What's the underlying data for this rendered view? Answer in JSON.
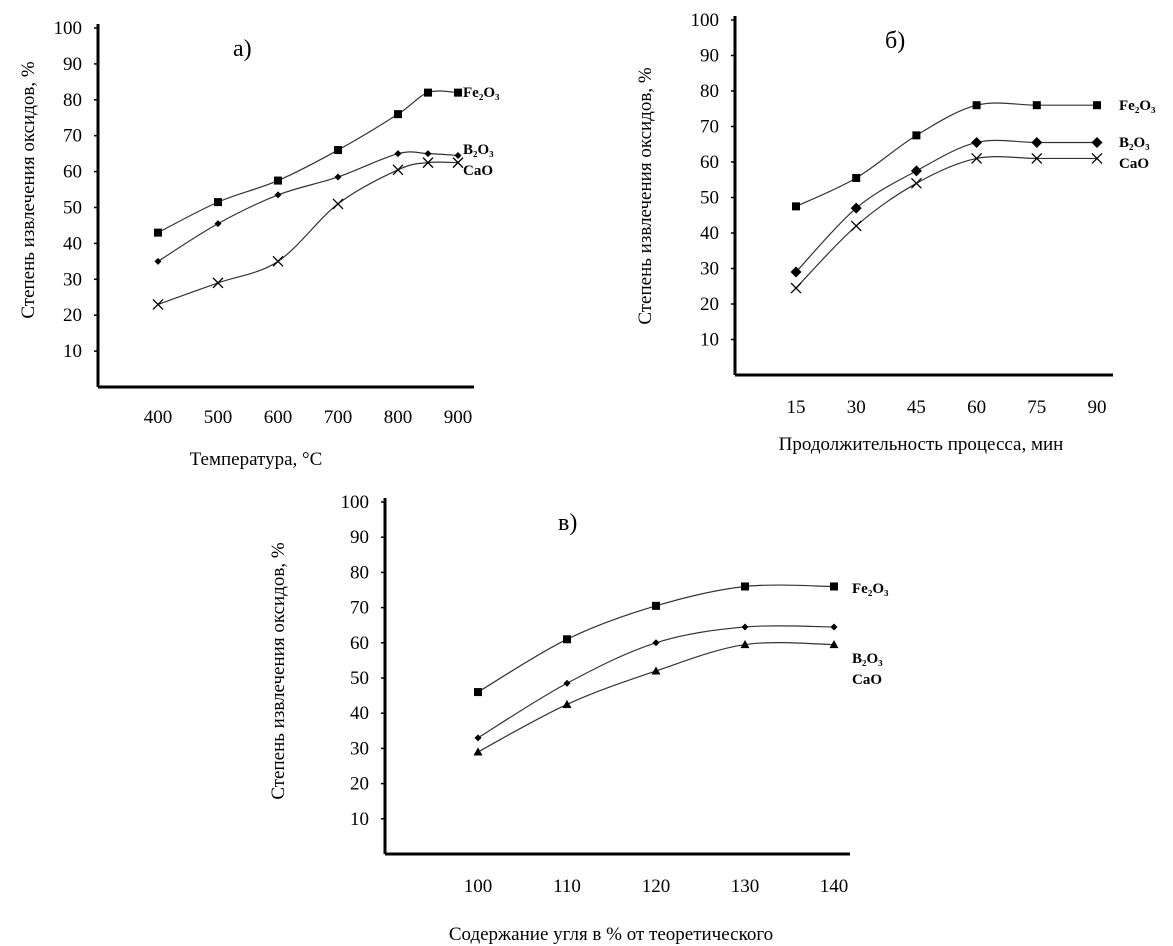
{
  "chart_data": [
    {
      "type": "line",
      "panel_label": "а)",
      "xlabel": "Температура, °C",
      "ylabel": "Степень извлечения оксидов, %",
      "x_ticks": [
        "400",
        "500",
        "600",
        "700",
        "800",
        "900"
      ],
      "y_ticks": [
        "10",
        "20",
        "30",
        "40",
        "50",
        "60",
        "70",
        "80",
        "90",
        "100"
      ],
      "ylim": [
        0,
        100
      ],
      "xlim": [
        300,
        900
      ],
      "grid": false,
      "series": [
        {
          "name": "Fe₂O₃",
          "marker": "square",
          "x": [
            400,
            500,
            600,
            700,
            800,
            850,
            900
          ],
          "y": [
            43,
            51.5,
            57.5,
            66,
            76,
            82,
            82
          ]
        },
        {
          "name": "B₂O₃",
          "marker": "diamond",
          "x": [
            400,
            500,
            600,
            700,
            800,
            850,
            900
          ],
          "y": [
            35,
            45.5,
            53.5,
            58.5,
            65,
            65,
            64.5
          ]
        },
        {
          "name": "CaO",
          "marker": "cross",
          "x": [
            400,
            500,
            600,
            700,
            800,
            850,
            900
          ],
          "y": [
            23,
            29,
            35,
            51,
            60.5,
            62.5,
            62.5
          ]
        }
      ]
    },
    {
      "type": "line",
      "panel_label": "б)",
      "xlabel": "Продолжительность процесса, мин",
      "ylabel": "Степень извлечения оксидов, %",
      "x_ticks": [
        "15",
        "30",
        "45",
        "60",
        "75",
        "90"
      ],
      "y_ticks": [
        "10",
        "20",
        "30",
        "40",
        "50",
        "60",
        "70",
        "80",
        "90",
        "100"
      ],
      "ylim": [
        0,
        100
      ],
      "xlim": [
        0,
        90
      ],
      "grid": false,
      "series": [
        {
          "name": "Fe₂O₃",
          "marker": "square",
          "x": [
            15,
            30,
            45,
            60,
            75,
            90
          ],
          "y": [
            47.5,
            55.5,
            67.5,
            76,
            76,
            76
          ]
        },
        {
          "name": "B₂O₃",
          "marker": "diamond",
          "x": [
            15,
            30,
            45,
            60,
            75,
            90
          ],
          "y": [
            29,
            47,
            57.5,
            65.5,
            65.5,
            65.5
          ]
        },
        {
          "name": "CaO",
          "marker": "cross",
          "x": [
            15,
            30,
            45,
            60,
            75,
            90
          ],
          "y": [
            24.5,
            42,
            54,
            61,
            61,
            61
          ]
        }
      ]
    },
    {
      "type": "line",
      "panel_label": "в)",
      "xlabel": "Содержание угля в % от теоретического",
      "ylabel": "Степень извлечения оксидов, %",
      "x_ticks": [
        "100",
        "110",
        "120",
        "130",
        "140"
      ],
      "y_ticks": [
        "10",
        "20",
        "30",
        "40",
        "50",
        "60",
        "70",
        "80",
        "90",
        "100"
      ],
      "ylim": [
        0,
        100
      ],
      "xlim": [
        90,
        140
      ],
      "grid": false,
      "series": [
        {
          "name": "Fe₂O₃",
          "marker": "square",
          "x": [
            100,
            110,
            120,
            130,
            140
          ],
          "y": [
            46,
            61,
            70.5,
            76,
            76
          ]
        },
        {
          "name": "B₂O₃",
          "marker": "diamond",
          "x": [
            100,
            110,
            120,
            130,
            140
          ],
          "y": [
            33,
            48.5,
            60,
            64.5,
            64.5
          ]
        },
        {
          "name": "CaO",
          "marker": "triangle",
          "x": [
            100,
            110,
            120,
            130,
            140
          ],
          "y": [
            29,
            42.5,
            52,
            59.5,
            59.5
          ]
        }
      ]
    }
  ]
}
